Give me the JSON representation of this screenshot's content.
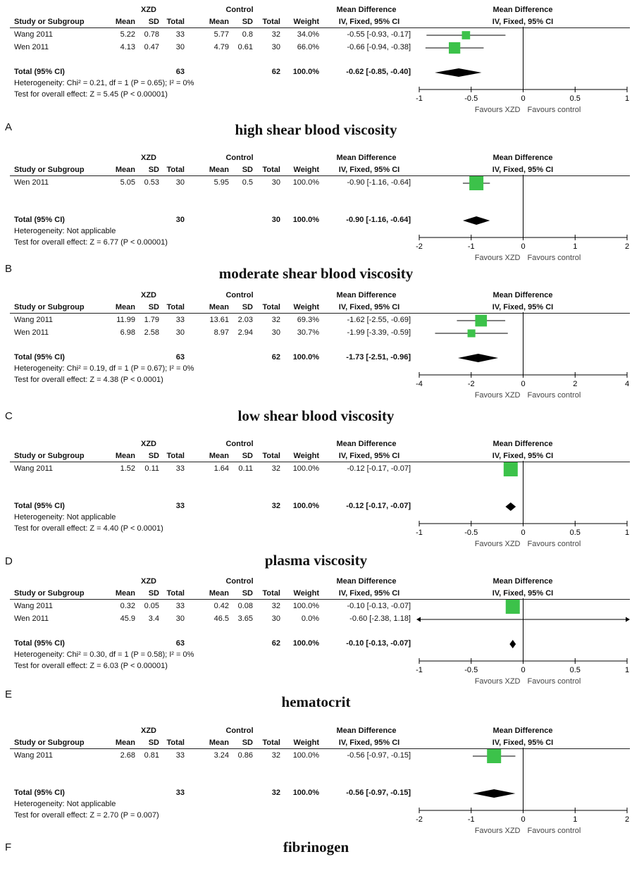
{
  "headers": {
    "group1": "XZD",
    "group2": "Control",
    "effect_title": "Mean Difference",
    "effect_subtitle": "IV, Fixed, 95% CI",
    "plot_title": "Mean Difference",
    "plot_subtitle": "IV, Fixed, 95% CI",
    "study": "Study or Subgroup",
    "mean": "Mean",
    "sd": "SD",
    "total": "Total",
    "weight": "Weight"
  },
  "favours_left": "Favours XZD",
  "favours_right": "Favours control",
  "colors": {
    "square": "#3cc24a",
    "diamond": "#000000",
    "line": "#000000"
  },
  "chart_data": [
    {
      "type": "forest",
      "letter": "A",
      "title": "high shear blood viscosity",
      "xlim": [
        -1,
        1
      ],
      "ticks": [
        "-1",
        "-0.5",
        "0",
        "0.5",
        "1"
      ],
      "tick_values": [
        -1,
        -0.5,
        0,
        0.5,
        1
      ],
      "studies": [
        {
          "name": "Wang 2011",
          "m1": "5.22",
          "sd1": "0.78",
          "n1": "33",
          "m2": "5.77",
          "sd2": "0.8",
          "n2": "32",
          "weight": "34.0%",
          "ci_text": "-0.55 [-0.93, -0.17]",
          "md": -0.55,
          "lo": -0.93,
          "hi": -0.17,
          "w": 34.0
        },
        {
          "name": "Wen 2011",
          "m1": "4.13",
          "sd1": "0.47",
          "n1": "30",
          "m2": "4.79",
          "sd2": "0.61",
          "n2": "30",
          "weight": "66.0%",
          "ci_text": "-0.66 [-0.94, -0.38]",
          "md": -0.66,
          "lo": -0.94,
          "hi": -0.38,
          "w": 66.0
        }
      ],
      "total": {
        "label": "Total (95% CI)",
        "n1": "63",
        "n2": "62",
        "weight": "100.0%",
        "ci_text": "-0.62 [-0.85, -0.40]",
        "md": -0.62,
        "lo": -0.85,
        "hi": -0.4
      },
      "heterogeneity": "Heterogeneity: Chi² = 0.21, df = 1 (P = 0.65); I² = 0%",
      "overall": "Test for overall effect: Z = 5.45 (P < 0.00001)"
    },
    {
      "type": "forest",
      "letter": "B",
      "title": "moderate shear blood viscosity",
      "xlim": [
        -2,
        2
      ],
      "ticks": [
        "-2",
        "-1",
        "0",
        "1",
        "2"
      ],
      "tick_values": [
        -2,
        -1,
        0,
        1,
        2
      ],
      "studies": [
        {
          "name": "Wen 2011",
          "m1": "5.05",
          "sd1": "0.53",
          "n1": "30",
          "m2": "5.95",
          "sd2": "0.5",
          "n2": "30",
          "weight": "100.0%",
          "ci_text": "-0.90 [-1.16, -0.64]",
          "md": -0.9,
          "lo": -1.16,
          "hi": -0.64,
          "w": 100.0
        }
      ],
      "total": {
        "label": "Total (95% CI)",
        "n1": "30",
        "n2": "30",
        "weight": "100.0%",
        "ci_text": "-0.90 [-1.16, -0.64]",
        "md": -0.9,
        "lo": -1.16,
        "hi": -0.64
      },
      "heterogeneity": "Heterogeneity: Not applicable",
      "overall": "Test for overall effect: Z = 6.77 (P < 0.00001)"
    },
    {
      "type": "forest",
      "letter": "C",
      "title": "low shear blood viscosity",
      "xlim": [
        -4,
        4
      ],
      "ticks": [
        "-4",
        "-2",
        "0",
        "2",
        "4"
      ],
      "tick_values": [
        -4,
        -2,
        0,
        2,
        4
      ],
      "studies": [
        {
          "name": "Wang 2011",
          "m1": "11.99",
          "sd1": "1.79",
          "n1": "33",
          "m2": "13.61",
          "sd2": "2.03",
          "n2": "32",
          "weight": "69.3%",
          "ci_text": "-1.62 [-2.55, -0.69]",
          "md": -1.62,
          "lo": -2.55,
          "hi": -0.69,
          "w": 69.3
        },
        {
          "name": "Wen 2011",
          "m1": "6.98",
          "sd1": "2.58",
          "n1": "30",
          "m2": "8.97",
          "sd2": "2.94",
          "n2": "30",
          "weight": "30.7%",
          "ci_text": "-1.99 [-3.39, -0.59]",
          "md": -1.99,
          "lo": -3.39,
          "hi": -0.59,
          "w": 30.7
        }
      ],
      "total": {
        "label": "Total (95% CI)",
        "n1": "63",
        "n2": "62",
        "weight": "100.0%",
        "ci_text": "-1.73 [-2.51, -0.96]",
        "md": -1.73,
        "lo": -2.51,
        "hi": -0.96
      },
      "heterogeneity": "Heterogeneity: Chi² = 0.19, df = 1 (P = 0.67); I² = 0%",
      "overall": "Test for overall effect: Z = 4.38 (P < 0.0001)"
    },
    {
      "type": "forest",
      "letter": "D",
      "title": "plasma viscosity",
      "xlim": [
        -1,
        1
      ],
      "ticks": [
        "-1",
        "-0.5",
        "0",
        "0.5",
        "1"
      ],
      "tick_values": [
        -1,
        -0.5,
        0,
        0.5,
        1
      ],
      "studies": [
        {
          "name": "Wang 2011",
          "m1": "1.52",
          "sd1": "0.11",
          "n1": "33",
          "m2": "1.64",
          "sd2": "0.11",
          "n2": "32",
          "weight": "100.0%",
          "ci_text": "-0.12 [-0.17, -0.07]",
          "md": -0.12,
          "lo": -0.17,
          "hi": -0.07,
          "w": 100.0
        }
      ],
      "total": {
        "label": "Total (95% CI)",
        "n1": "33",
        "n2": "32",
        "weight": "100.0%",
        "ci_text": "-0.12 [-0.17, -0.07]",
        "md": -0.12,
        "lo": -0.17,
        "hi": -0.07
      },
      "heterogeneity": "Heterogeneity: Not applicable",
      "overall": "Test for overall effect: Z = 4.40 (P < 0.0001)"
    },
    {
      "type": "forest",
      "letter": "E",
      "title": "hematocrit",
      "xlim": [
        -1,
        1
      ],
      "ticks": [
        "-1",
        "-0.5",
        "0",
        "0.5",
        "1"
      ],
      "tick_values": [
        -1,
        -0.5,
        0,
        0.5,
        1
      ],
      "studies": [
        {
          "name": "Wang 2011",
          "m1": "0.32",
          "sd1": "0.05",
          "n1": "33",
          "m2": "0.42",
          "sd2": "0.08",
          "n2": "32",
          "weight": "100.0%",
          "ci_text": "-0.10 [-0.13, -0.07]",
          "md": -0.1,
          "lo": -0.13,
          "hi": -0.07,
          "w": 100.0
        },
        {
          "name": "Wen 2011",
          "m1": "45.9",
          "sd1": "3.4",
          "n1": "30",
          "m2": "46.5",
          "sd2": "3.65",
          "n2": "30",
          "weight": "0.0%",
          "ci_text": "-0.60 [-2.38, 1.18]",
          "md": -0.6,
          "lo": -2.38,
          "hi": 1.18,
          "w": 0.0
        }
      ],
      "total": {
        "label": "Total (95% CI)",
        "n1": "63",
        "n2": "62",
        "weight": "100.0%",
        "ci_text": "-0.10 [-0.13, -0.07]",
        "md": -0.1,
        "lo": -0.13,
        "hi": -0.07
      },
      "heterogeneity": "Heterogeneity: Chi² = 0.30, df = 1 (P = 0.58); I² = 0%",
      "overall": "Test for overall effect: Z = 6.03 (P < 0.00001)"
    },
    {
      "type": "forest",
      "letter": "F",
      "title": "fibrinogen",
      "xlim": [
        -2,
        2
      ],
      "ticks": [
        "-2",
        "-1",
        "0",
        "1",
        "2"
      ],
      "tick_values": [
        -2,
        -1,
        0,
        1,
        2
      ],
      "studies": [
        {
          "name": "Wang 2011",
          "m1": "2.68",
          "sd1": "0.81",
          "n1": "33",
          "m2": "3.24",
          "sd2": "0.86",
          "n2": "32",
          "weight": "100.0%",
          "ci_text": "-0.56 [-0.97, -0.15]",
          "md": -0.56,
          "lo": -0.97,
          "hi": -0.15,
          "w": 100.0
        }
      ],
      "total": {
        "label": "Total (95% CI)",
        "n1": "33",
        "n2": "32",
        "weight": "100.0%",
        "ci_text": "-0.56 [-0.97, -0.15]",
        "md": -0.56,
        "lo": -0.97,
        "hi": -0.15
      },
      "heterogeneity": "Heterogeneity: Not applicable",
      "overall": "Test for overall effect: Z = 2.70 (P = 0.007)"
    }
  ]
}
